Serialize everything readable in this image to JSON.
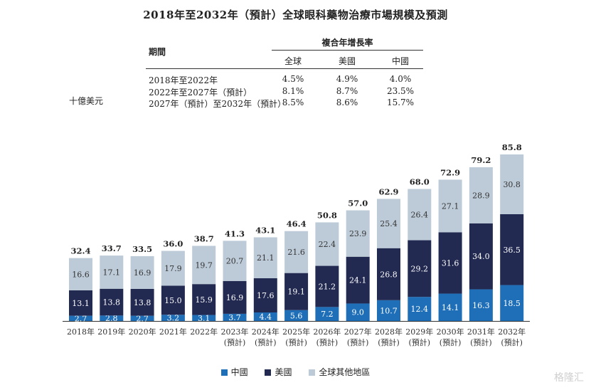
{
  "title": "2018年至2032年（預計）全球眼科藥物治療市場規模及預測",
  "unit_label": "十億美元",
  "cagr_table": {
    "period_header": "期間",
    "group_header": "複合年增長率",
    "columns": [
      "全球",
      "美國",
      "中國"
    ],
    "rows": [
      {
        "period": "2018年至2022年",
        "values": [
          "4.5%",
          "4.9%",
          "4.0%"
        ]
      },
      {
        "period": "2022年至2027年（預計）",
        "values": [
          "8.1%",
          "8.7%",
          "23.5%"
        ]
      },
      {
        "period": "2027年（預計）至2032年（預計）",
        "values": [
          "8.5%",
          "8.6%",
          "15.7%"
        ]
      }
    ]
  },
  "chart_data": {
    "type": "bar",
    "stacked": true,
    "categories": [
      "2018年",
      "2019年",
      "2020年",
      "2021年",
      "2022年",
      "2023年",
      "2024年",
      "2025年",
      "2026年",
      "2027年",
      "2028年",
      "2029年",
      "2030年",
      "2031年",
      "2032年"
    ],
    "category_sublabels": [
      "",
      "",
      "",
      "",
      "",
      "(預計)",
      "(預計)",
      "(預計)",
      "(預計)",
      "(預計)",
      "(預計)",
      "(預計)",
      "(預計)",
      "(預計)",
      "(預計)"
    ],
    "series": [
      {
        "name": "中國",
        "color": "#1f6fb8",
        "values": [
          2.7,
          2.8,
          2.7,
          3.2,
          3.1,
          3.7,
          4.4,
          5.6,
          7.2,
          9.0,
          10.7,
          12.4,
          14.1,
          16.3,
          18.5
        ]
      },
      {
        "name": "美國",
        "color": "#232a52",
        "values": [
          13.1,
          13.8,
          13.8,
          15.0,
          15.9,
          16.9,
          17.6,
          19.1,
          21.2,
          24.1,
          26.8,
          29.2,
          31.6,
          34.0,
          36.5
        ]
      },
      {
        "name": "全球其他地區",
        "color": "#bdcbd8",
        "values": [
          16.6,
          17.1,
          16.9,
          17.9,
          19.7,
          20.7,
          21.1,
          21.6,
          22.4,
          23.9,
          25.4,
          26.4,
          27.1,
          28.9,
          30.8
        ]
      }
    ],
    "totals": [
      32.4,
      33.7,
      33.5,
      36.0,
      38.7,
      41.3,
      43.1,
      46.4,
      50.8,
      57.0,
      62.9,
      68.0,
      72.9,
      79.2,
      85.8
    ],
    "ylim": [
      0,
      85.8
    ],
    "legend_position": "bottom",
    "grid": false
  },
  "watermark": "格隆汇"
}
